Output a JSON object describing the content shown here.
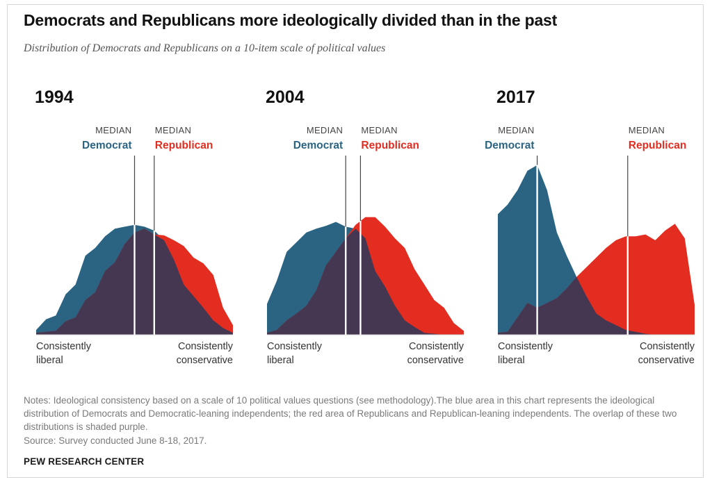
{
  "title": "Democrats and Republicans more ideologically divided than in the past",
  "subtitle": "Distribution of Democrats and Republicans on a 10-item scale of political values",
  "notes": "Notes: Ideological consistency based on a scale of 10 political values questions (see methodology).The blue area in this chart represents the ideological distribution of Democrats and Democratic-leaning independents; the red area of Republicans and Republican-leaning independents. The overlap of these two distributions is shaded purple.",
  "source": "Source: Survey conducted June 8-18, 2017.",
  "brand": "PEW RESEARCH CENTER",
  "colors": {
    "democrat": "#2b6483",
    "republican": "#e32d20",
    "overlap": "#453751"
  },
  "labels": {
    "median": "MEDIAN",
    "democrat": "Democrat",
    "republican": "Republican",
    "liberal": [
      "Consistently",
      "liberal"
    ],
    "conservative": [
      "Consistently",
      "conservative"
    ]
  },
  "chart_data": [
    {
      "type": "area",
      "title": "1994",
      "x": [
        0,
        1,
        2,
        3,
        4,
        5,
        6,
        7,
        8,
        9,
        10,
        11,
        12,
        13,
        14,
        15,
        16,
        17,
        18,
        19,
        20
      ],
      "series": [
        {
          "name": "Democrat",
          "values": [
            5,
            16,
            20,
            42,
            52,
            82,
            90,
            102,
            110,
            112,
            114,
            112,
            108,
            98,
            78,
            52,
            40,
            28,
            15,
            7,
            2
          ]
        },
        {
          "name": "Republican",
          "values": [
            2,
            3,
            4,
            14,
            18,
            36,
            44,
            66,
            75,
            94,
            106,
            110,
            104,
            103,
            98,
            92,
            80,
            74,
            62,
            28,
            10
          ]
        }
      ],
      "median": {
        "Democrat": 10.0,
        "Republican": 12.0
      }
    },
    {
      "type": "area",
      "title": "2004",
      "x": [
        0,
        1,
        2,
        3,
        4,
        5,
        6,
        7,
        8,
        9,
        10,
        11,
        12,
        13,
        14,
        15,
        16,
        17,
        18,
        19,
        20
      ],
      "series": [
        {
          "name": "Democrat",
          "values": [
            32,
            56,
            86,
            96,
            106,
            110,
            113,
            117,
            112,
            110,
            100,
            66,
            50,
            30,
            15,
            8,
            2,
            1,
            0,
            0,
            0
          ]
        },
        {
          "name": "Republican",
          "values": [
            2,
            5,
            15,
            22,
            30,
            46,
            72,
            86,
            100,
            114,
            122,
            122,
            112,
            100,
            90,
            68,
            52,
            36,
            28,
            12,
            4
          ]
        }
      ],
      "median": {
        "Democrat": 8.0,
        "Republican": 9.5
      }
    },
    {
      "type": "area",
      "title": "2017",
      "x": [
        0,
        1,
        2,
        3,
        4,
        5,
        6,
        7,
        8,
        9,
        10,
        11,
        12,
        13,
        14,
        15,
        16,
        17,
        18,
        19,
        20
      ],
      "series": [
        {
          "name": "Democrat",
          "values": [
            125,
            135,
            150,
            170,
            176,
            150,
            106,
            82,
            60,
            40,
            22,
            15,
            10,
            5,
            3,
            1,
            0,
            0,
            0,
            0,
            0
          ]
        },
        {
          "name": "Republican",
          "values": [
            2,
            3,
            18,
            33,
            28,
            33,
            38,
            48,
            60,
            70,
            80,
            90,
            98,
            102,
            102,
            104,
            98,
            108,
            115,
            100,
            31
          ]
        }
      ],
      "median": {
        "Democrat": 4.0,
        "Republican": 13.2
      }
    }
  ]
}
